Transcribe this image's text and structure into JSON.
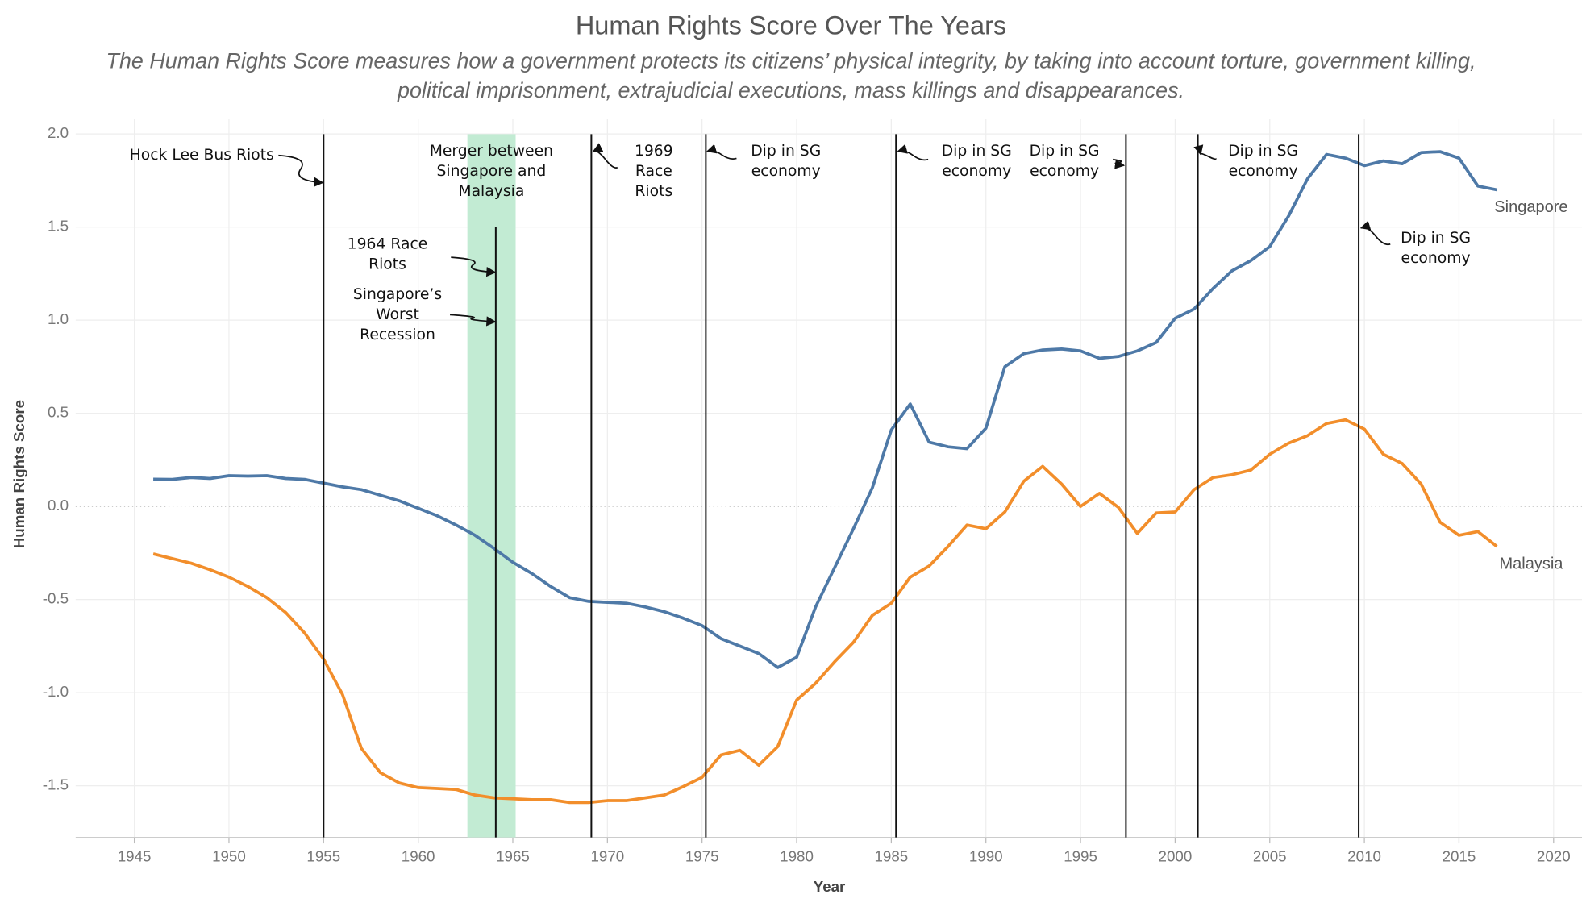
{
  "chart_data": {
    "type": "line",
    "title": "Human Rights Score Over The Years",
    "subtitle": [
      "The Human Rights Score measures how a government protects its citizens’ physical integrity, by taking into account torture, government killing,",
      "political imprisonment, extrajudicial executions, mass killings and disappearances."
    ],
    "x_label": "Year",
    "y_label": "Human Rights Score",
    "xlim": [
      1941.9,
      2021.5
    ],
    "ylim": [
      -1.777,
      2.08
    ],
    "xticks": [
      1945,
      1950,
      1955,
      1960,
      1965,
      1970,
      1975,
      1980,
      1985,
      1990,
      1995,
      2000,
      2005,
      2010,
      2015,
      2020
    ],
    "yticks": [
      {
        "value": 2,
        "label": "2.0"
      },
      1.5,
      {
        "value": 1,
        "label": "1.0"
      },
      0.5,
      {
        "value": 0,
        "label": "0.0"
      },
      -0.5,
      {
        "value": -1,
        "label": "-1.0"
      },
      -1.5
    ],
    "grid": true,
    "x": [
      1946,
      1947,
      1948,
      1949,
      1950,
      1951,
      1952,
      1953,
      1954,
      1955,
      1956,
      1957,
      1958,
      1959,
      1960,
      1961,
      1962,
      1963,
      1964,
      1965,
      1966,
      1967,
      1968,
      1969,
      1970,
      1971,
      1972,
      1973,
      1974,
      1975,
      1976,
      1977,
      1978,
      1979,
      1980,
      1981,
      1982,
      1983,
      1984,
      1985,
      1986,
      1987,
      1988,
      1989,
      1990,
      1991,
      1992,
      1993,
      1994,
      1995,
      1996,
      1997,
      1998,
      1999,
      2000,
      2001,
      2002,
      2003,
      2004,
      2005,
      2006,
      2007,
      2008,
      2009,
      2010,
      2011,
      2012,
      2013,
      2014,
      2015,
      2016,
      2017
    ],
    "series": [
      {
        "name": "Singapore",
        "color": "#4e79a7",
        "values": [
          0.146,
          0.145,
          0.155,
          0.15,
          0.165,
          0.163,
          0.165,
          0.15,
          0.145,
          0.125,
          0.105,
          0.09,
          0.06,
          0.03,
          -0.01,
          -0.05,
          -0.1,
          -0.155,
          -0.225,
          -0.3,
          -0.36,
          -0.43,
          -0.49,
          -0.51,
          -0.515,
          -0.52,
          -0.54,
          -0.565,
          -0.6,
          -0.64,
          -0.71,
          -0.75,
          -0.79,
          -0.865,
          -0.81,
          -0.54,
          -0.33,
          -0.12,
          0.1,
          0.41,
          0.55,
          0.345,
          0.32,
          0.31,
          0.42,
          0.75,
          0.82,
          0.84,
          0.845,
          0.835,
          0.795,
          0.805,
          0.835,
          0.88,
          1.01,
          1.06,
          1.17,
          1.265,
          1.32,
          1.395,
          1.56,
          1.76,
          1.89,
          1.87,
          1.83,
          1.855,
          1.84,
          1.9,
          1.905,
          1.87,
          1.72,
          1.7
        ]
      },
      {
        "name": "Malaysia",
        "color": "#f28e2b",
        "values": [
          -0.255,
          -0.28,
          -0.305,
          -0.34,
          -0.38,
          -0.43,
          -0.49,
          -0.57,
          -0.68,
          -0.82,
          -1.01,
          -1.3,
          -1.43,
          -1.485,
          -1.51,
          -1.515,
          -1.52,
          -1.55,
          -1.565,
          -1.57,
          -1.575,
          -1.575,
          -1.59,
          -1.59,
          -1.58,
          -1.58,
          -1.565,
          -1.55,
          -1.505,
          -1.455,
          -1.335,
          -1.31,
          -1.39,
          -1.29,
          -1.04,
          -0.95,
          -0.835,
          -0.73,
          -0.585,
          -0.52,
          -0.38,
          -0.32,
          -0.215,
          -0.1,
          -0.12,
          -0.03,
          0.135,
          0.215,
          0.12,
          0.0,
          0.07,
          -0.005,
          -0.145,
          -0.035,
          -0.03,
          0.09,
          0.155,
          0.17,
          0.195,
          0.28,
          0.34,
          0.38,
          0.445,
          0.465,
          0.415,
          0.28,
          0.23,
          0.12,
          -0.085,
          -0.155,
          -0.135,
          -0.215
        ]
      }
    ],
    "highlight": {
      "x": [
        1962.6,
        1965.15
      ],
      "color": "#c2ebd3",
      "label": [
        "Merger between",
        "Singapore and",
        "Malaysia"
      ]
    },
    "events": [
      {
        "x": 1955,
        "labels": [
          [
            "Hock Lee Bus Riots"
          ]
        ]
      },
      {
        "x": 1964.1,
        "y_top": 1.5,
        "labels": [
          [
            "1964 Race",
            "Riots"
          ],
          [
            "Singapore’s",
            "Worst",
            "Recession"
          ]
        ]
      },
      {
        "x": 1969.15,
        "labels": [
          [
            "1969",
            "Race",
            "Riots"
          ]
        ]
      },
      {
        "x": 1975.2,
        "labels": [
          [
            "Dip in SG",
            "economy"
          ]
        ]
      },
      {
        "x": 1985.25,
        "labels": [
          [
            "Dip in SG",
            "economy"
          ]
        ]
      },
      {
        "x": 1997.4,
        "labels": [
          [
            "Dip in SG",
            "economy"
          ]
        ]
      },
      {
        "x": 2001.2,
        "labels": [
          [
            "Dip in SG",
            "economy"
          ]
        ]
      },
      {
        "x": 2009.7,
        "labels": [
          [
            "Dip in SG",
            "economy"
          ]
        ]
      }
    ]
  }
}
